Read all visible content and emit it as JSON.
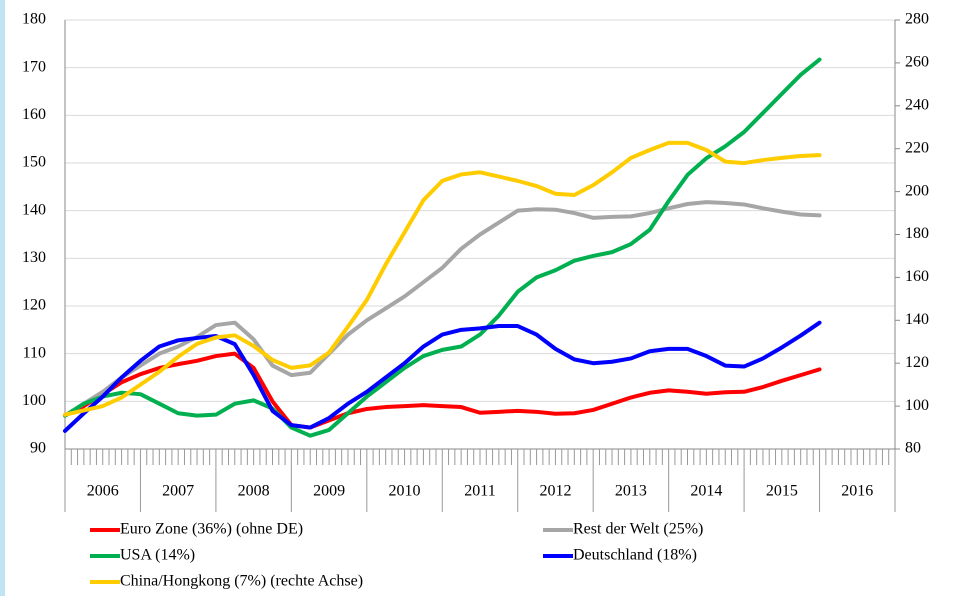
{
  "chart_data": {
    "type": "line",
    "x": [
      2006,
      2006.25,
      2006.5,
      2006.75,
      2007,
      2007.25,
      2007.5,
      2007.75,
      2008,
      2008.25,
      2008.5,
      2008.75,
      2009,
      2009.25,
      2009.5,
      2009.75,
      2010,
      2010.25,
      2010.5,
      2010.75,
      2011,
      2011.25,
      2011.5,
      2011.75,
      2012,
      2012.25,
      2012.5,
      2012.75,
      2013,
      2013.25,
      2013.5,
      2013.75,
      2014,
      2014.25,
      2014.5,
      2014.75,
      2015,
      2015.25,
      2015.5,
      2015.75,
      2016
    ],
    "xlim": [
      2006,
      2017
    ],
    "xticks": [
      {
        "value": 2006.5,
        "label": "2006"
      },
      {
        "value": 2007.5,
        "label": "2007"
      },
      {
        "value": 2008.5,
        "label": "2008"
      },
      {
        "value": 2009.5,
        "label": "2009"
      },
      {
        "value": 2010.5,
        "label": "2010"
      },
      {
        "value": 2011.5,
        "label": "2011"
      },
      {
        "value": 2012.5,
        "label": "2012"
      },
      {
        "value": 2013.5,
        "label": "2013"
      },
      {
        "value": 2014.5,
        "label": "2014"
      },
      {
        "value": 2015.5,
        "label": "2015"
      },
      {
        "value": 2016.5,
        "label": "2016"
      }
    ],
    "ylim": [
      90,
      180
    ],
    "yticks": [
      90,
      100,
      110,
      120,
      130,
      140,
      150,
      160,
      170,
      180
    ],
    "y2lim": [
      80,
      280
    ],
    "y2ticks": [
      80,
      100,
      120,
      140,
      160,
      180,
      200,
      220,
      240,
      260,
      280
    ],
    "grid": true,
    "legend": "bottom",
    "series": [
      {
        "name": "Euro Zone (36%) (ohne DE)",
        "color": "#ff0000",
        "values": [
          97,
          99,
          101.5,
          104,
          105.7,
          107,
          107.8,
          108.5,
          109.5,
          110,
          107,
          100,
          95,
          94.5,
          96,
          97.5,
          98.4,
          98.8,
          99,
          99.2,
          99,
          98.8,
          97.6,
          97.8,
          98,
          97.8,
          97.4,
          97.5,
          98.2,
          99.5,
          100.8,
          101.8,
          102.3,
          102,
          101.6,
          101.9,
          102,
          103,
          104.3,
          105.5,
          106.7
        ]
      },
      {
        "name": "Rest der Welt (25%)",
        "color": "#a6a6a6",
        "values": [
          97,
          99.5,
          102,
          105,
          107.5,
          110,
          111.5,
          113.5,
          116,
          116.5,
          113,
          107.5,
          105.5,
          106,
          110,
          114,
          117,
          119.5,
          122,
          125,
          128,
          132,
          135,
          137.5,
          140,
          140.3,
          140.2,
          139.5,
          138.5,
          138.7,
          138.8,
          139.5,
          140.5,
          141.4,
          141.8,
          141.6,
          141.3,
          140.5,
          139.8,
          139.2,
          139
        ]
      },
      {
        "name": "USA (14%)",
        "color": "#00b050",
        "values": [
          97,
          99.5,
          101,
          101.8,
          101.5,
          99.5,
          97.5,
          97,
          97.2,
          99.5,
          100.2,
          98.5,
          94.5,
          92.8,
          94,
          97.5,
          101,
          104,
          107,
          109.5,
          110.8,
          111.5,
          114,
          118,
          123,
          126,
          127.5,
          129.5,
          130.5,
          131.3,
          133,
          136,
          142,
          147.5,
          151,
          153.5,
          156.5,
          160.5,
          164.5,
          168.5,
          171.7
        ]
      },
      {
        "name": "Deutschland (18%)",
        "color": "#0000ff",
        "values": [
          93.8,
          97.5,
          101,
          105,
          108.5,
          111.5,
          112.8,
          113.3,
          113.7,
          112,
          105.5,
          98,
          95,
          94.5,
          96.5,
          99.5,
          102,
          105,
          108,
          111.5,
          114,
          115,
          115.3,
          115.8,
          115.8,
          114,
          111,
          108.8,
          108,
          108.3,
          109,
          110.5,
          111,
          111,
          109.5,
          107.5,
          107.3,
          109,
          111.3,
          113.8,
          116.5
        ]
      },
      {
        "name": "China/Hongkong (7%) (rechte Achse)",
        "color": "#ffcc00",
        "axis": "y2",
        "values": [
          96,
          98,
          100,
          104,
          110,
          116,
          123,
          129,
          132,
          133,
          128,
          121.5,
          117.8,
          119,
          125,
          137,
          149.5,
          166,
          181,
          196,
          205,
          208,
          209,
          207,
          205,
          202.6,
          199,
          198.4,
          203,
          209,
          215.7,
          219.4,
          222.7,
          222.7,
          219.4,
          214,
          213.3,
          214.7,
          215.7,
          216.6,
          217
        ]
      }
    ]
  }
}
